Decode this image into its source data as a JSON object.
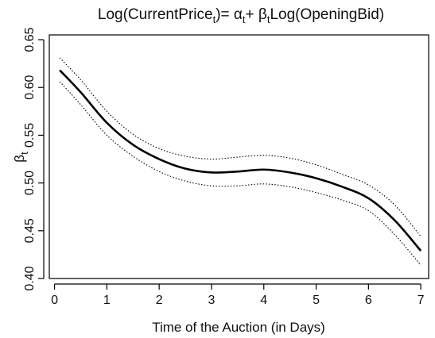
{
  "chart_data": {
    "type": "line",
    "title": {
      "pre": "Log(CurrentPrice",
      "sub1": "t",
      "mid": ")= α",
      "sub2": "t",
      "mid2": "+ β",
      "sub3": "t",
      "post": "Log(OpeningBid)"
    },
    "xlabel": "Time of the Auction (in Days)",
    "ylabel": {
      "main": "β",
      "sub": "t"
    },
    "xlim": [
      -0.1,
      7.15
    ],
    "ylim": [
      0.4,
      0.655
    ],
    "x_ticks": [
      0,
      1,
      2,
      3,
      4,
      5,
      6,
      7
    ],
    "y_ticks": [
      "0.40",
      "0.45",
      "0.50",
      "0.55",
      "0.60",
      "0.65"
    ],
    "x": [
      0.1,
      0.5,
      1.0,
      1.5,
      2.0,
      2.5,
      3.0,
      3.5,
      4.0,
      4.5,
      5.0,
      5.5,
      6.0,
      6.5,
      7.0
    ],
    "series": [
      {
        "role": "estimate",
        "style": "solid",
        "values": [
          0.618,
          0.595,
          0.563,
          0.54,
          0.525,
          0.515,
          0.511,
          0.512,
          0.514,
          0.511,
          0.505,
          0.496,
          0.484,
          0.461,
          0.429
        ]
      },
      {
        "role": "upper",
        "style": "dotted",
        "values": [
          0.631,
          0.608,
          0.575,
          0.551,
          0.536,
          0.528,
          0.525,
          0.527,
          0.529,
          0.526,
          0.519,
          0.509,
          0.498,
          0.477,
          0.444
        ]
      },
      {
        "role": "lower",
        "style": "dotted",
        "values": [
          0.606,
          0.582,
          0.55,
          0.528,
          0.512,
          0.502,
          0.497,
          0.497,
          0.499,
          0.496,
          0.49,
          0.482,
          0.471,
          0.446,
          0.414
        ]
      }
    ]
  }
}
